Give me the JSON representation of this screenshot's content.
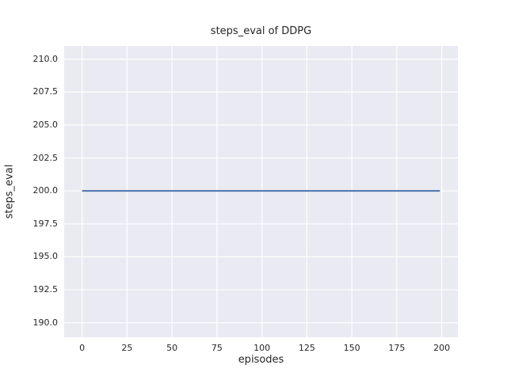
{
  "chart_data": {
    "type": "line",
    "title": "steps_eval of DDPG",
    "xlabel": "episodes",
    "ylabel": "steps_eval",
    "series": [
      {
        "name": "DDPG",
        "x": [
          0,
          199
        ],
        "y": [
          200,
          200
        ],
        "color": "#4c72b0",
        "linewidth": 2
      }
    ],
    "xlim": [
      -9.95,
      208.95
    ],
    "ylim": [
      188.9,
      211.0
    ],
    "xticks": {
      "values": [
        0,
        25,
        50,
        75,
        100,
        125,
        150,
        175,
        200
      ],
      "labels": [
        "0",
        "25",
        "50",
        "75",
        "100",
        "125",
        "150",
        "175",
        "200"
      ]
    },
    "yticks": {
      "values": [
        190.0,
        192.5,
        195.0,
        197.5,
        200.0,
        202.5,
        205.0,
        207.5,
        210.0
      ],
      "labels": [
        "190.0",
        "192.5",
        "195.0",
        "197.5",
        "200.0",
        "202.5",
        "205.0",
        "207.5",
        "210.0"
      ]
    },
    "grid": true,
    "legend": null,
    "style": {
      "figure_bg": "#ffffff",
      "plot_bg": "#eaeaf2",
      "grid_color": "#ffffff",
      "text_color": "#262626"
    }
  }
}
